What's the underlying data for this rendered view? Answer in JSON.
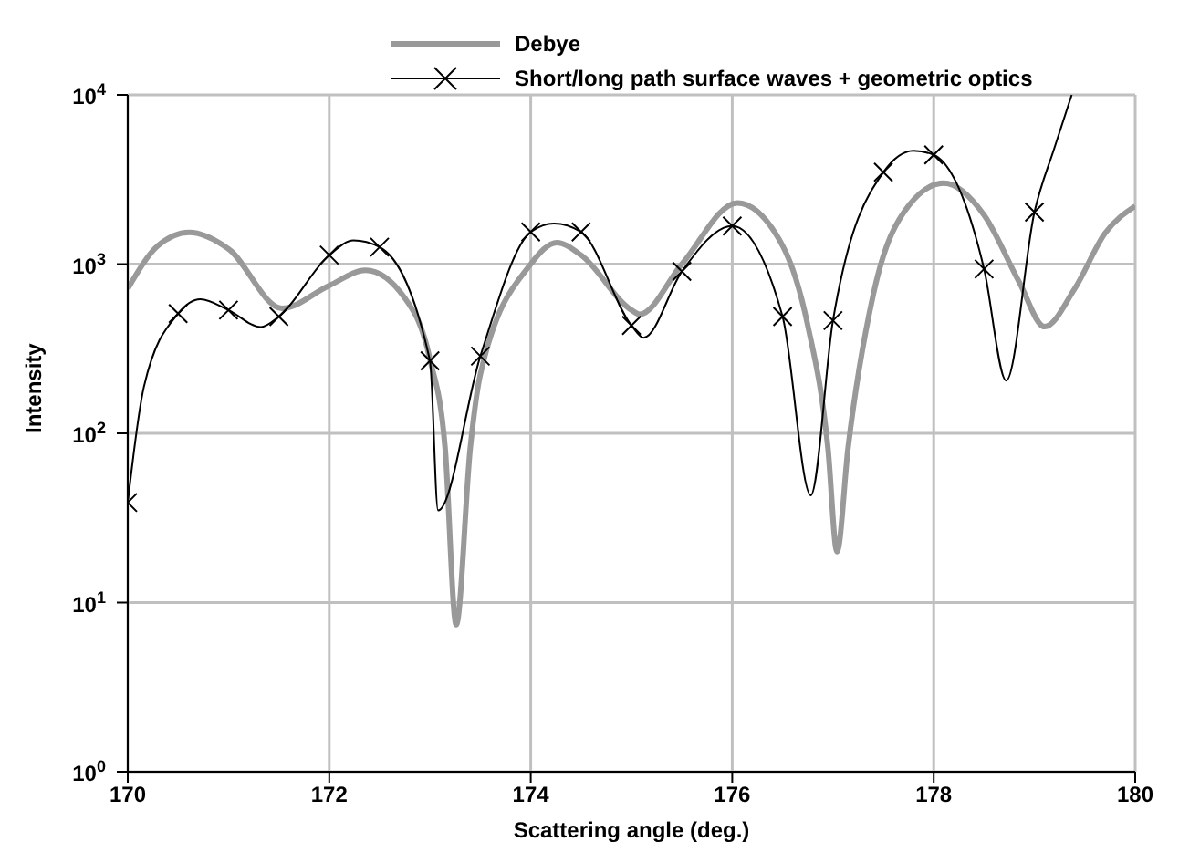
{
  "chart_data": {
    "type": "line",
    "xlabel": "Scattering angle (deg.)",
    "ylabel": "Intensity",
    "log": "y",
    "grid": true,
    "legend": "top",
    "line_style": "solid",
    "xlim": [
      170,
      180
    ],
    "xticks": [
      170,
      172,
      174,
      176,
      178,
      180
    ],
    "ylim": [
      1,
      10000
    ],
    "yticks": [
      {
        "value": 1,
        "label": "10$^{0}$"
      },
      {
        "value": 10,
        "label": "10$^{1}$"
      },
      {
        "value": 100,
        "label": "10$^{2}$"
      },
      {
        "value": 1000,
        "label": "10$^{3}$"
      },
      {
        "value": 10000,
        "label": "10$^{4}$"
      }
    ],
    "series": [
      {
        "name": "Debye",
        "color": "#999999",
        "marker": "none",
        "x": [
          170,
          170.3,
          170.61,
          171,
          171.53,
          172,
          172.36,
          172.75,
          173,
          173.15,
          173.26,
          173.4,
          173.5,
          174,
          174.26,
          174.5,
          175,
          175.08,
          175.5,
          176.05,
          176.5,
          176.75,
          176.95,
          177.04,
          177.15,
          177.4,
          177.75,
          178.1,
          178.5,
          178.85,
          179.1,
          179.4,
          179.7,
          180
        ],
        "values": [
          716,
          1285,
          1540,
          1230,
          548,
          747,
          920,
          630,
          274,
          82,
          7.4,
          82,
          223,
          1000,
          1340,
          1130,
          535,
          505,
          1000,
          2300,
          1285,
          434,
          82,
          20,
          82,
          660,
          2210,
          3010,
          1950,
          780,
          427,
          716,
          1520,
          2200
        ]
      },
      {
        "name": "Short/long path surface waves + geometric optics",
        "color": "#000000",
        "marker": "cross",
        "x": [
          170,
          170.16,
          170.5,
          170.72,
          171,
          171.32,
          171.5,
          172,
          172.24,
          172.5,
          173,
          173.08,
          173.5,
          174,
          174.23,
          174.5,
          175,
          175.12,
          175.5,
          176,
          176.5,
          176.78,
          177,
          177.5,
          177.8,
          178,
          178.5,
          178.72,
          179,
          179.2,
          179.37
        ],
        "values": [
          39,
          188,
          510,
          620,
          535,
          425,
          490,
          1130,
          1380,
          1260,
          268,
          35,
          286,
          1550,
          1740,
          1550,
          434,
          367,
          905,
          1680,
          490,
          43,
          464,
          3490,
          4680,
          4420,
          935,
          205,
          2030,
          4900,
          10000
        ]
      }
    ]
  }
}
